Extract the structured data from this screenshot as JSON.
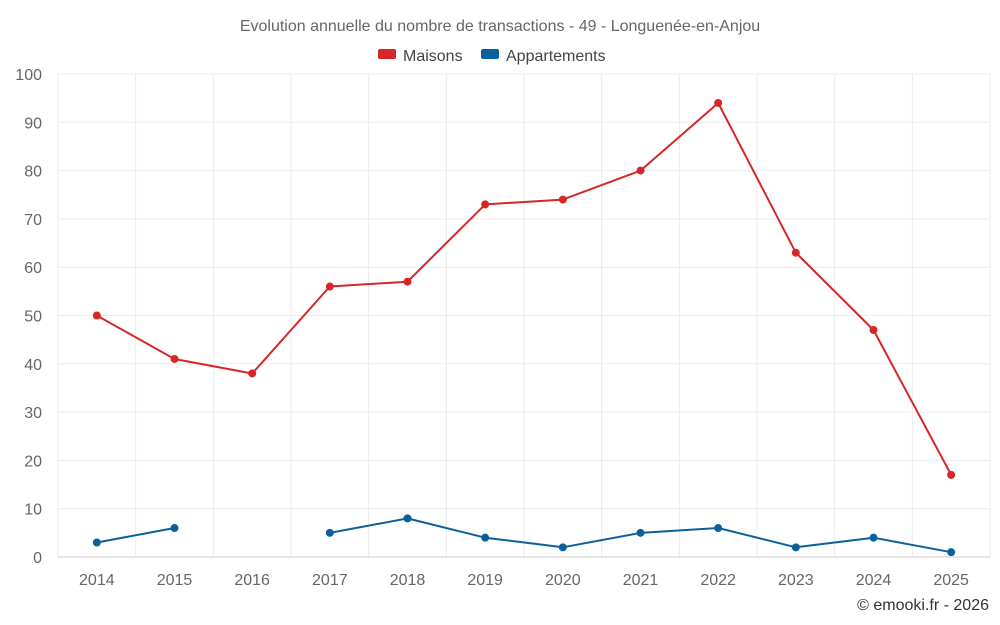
{
  "chart_data": {
    "type": "line",
    "title": "Evolution annuelle du nombre de transactions - 49 - Longuenée-en-Anjou",
    "categories": [
      "2014",
      "2015",
      "2016",
      "2017",
      "2018",
      "2019",
      "2020",
      "2021",
      "2022",
      "2023",
      "2024",
      "2025"
    ],
    "series": [
      {
        "name": "Maisons",
        "color": "#d62728",
        "values": [
          50,
          41,
          38,
          56,
          57,
          73,
          74,
          80,
          94,
          63,
          47,
          17
        ]
      },
      {
        "name": "Appartements",
        "color": "#0a6199",
        "values": [
          3,
          6,
          null,
          5,
          8,
          4,
          2,
          5,
          6,
          2,
          4,
          1
        ]
      }
    ],
    "xlabel": "",
    "ylabel": "",
    "ylim": [
      0,
      100
    ],
    "yticks": [
      "0",
      "10",
      "20",
      "30",
      "40",
      "50",
      "60",
      "70",
      "80",
      "90",
      "100"
    ],
    "grid": true,
    "legend": "top-center"
  },
  "credit": "© emooki.fr - 2026"
}
